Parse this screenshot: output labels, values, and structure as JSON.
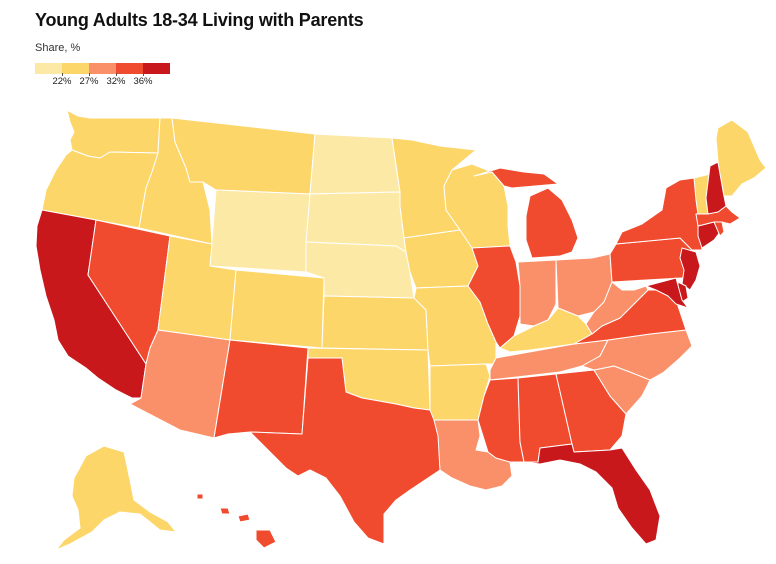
{
  "title": "Young Adults 18-34 Living with Parents",
  "subtitle": "Share, %",
  "legend": {
    "colors": [
      "#fde9a6",
      "#fdd66a",
      "#fa9069",
      "#f04b2e",
      "#c8181c"
    ],
    "ticks": [
      "22%",
      "27%",
      "32%",
      "36%"
    ]
  },
  "states": [
    {
      "code": "WA",
      "tier": 1
    },
    {
      "code": "OR",
      "tier": 1
    },
    {
      "code": "CA",
      "tier": 4
    },
    {
      "code": "ID",
      "tier": 1
    },
    {
      "code": "NV",
      "tier": 3
    },
    {
      "code": "MT",
      "tier": 1
    },
    {
      "code": "WY",
      "tier": 0
    },
    {
      "code": "UT",
      "tier": 1
    },
    {
      "code": "AZ",
      "tier": 2
    },
    {
      "code": "CO",
      "tier": 1
    },
    {
      "code": "NM",
      "tier": 3
    },
    {
      "code": "ND",
      "tier": 0
    },
    {
      "code": "SD",
      "tier": 0
    },
    {
      "code": "NE",
      "tier": 0
    },
    {
      "code": "KS",
      "tier": 1
    },
    {
      "code": "OK",
      "tier": 1
    },
    {
      "code": "TX",
      "tier": 3
    },
    {
      "code": "MN",
      "tier": 1
    },
    {
      "code": "IA",
      "tier": 1
    },
    {
      "code": "MO",
      "tier": 1
    },
    {
      "code": "AR",
      "tier": 1
    },
    {
      "code": "LA",
      "tier": 2
    },
    {
      "code": "WI",
      "tier": 1
    },
    {
      "code": "IL",
      "tier": 3
    },
    {
      "code": "MI",
      "tier": 3
    },
    {
      "code": "IN",
      "tier": 2
    },
    {
      "code": "OH",
      "tier": 2
    },
    {
      "code": "KY",
      "tier": 1
    },
    {
      "code": "TN",
      "tier": 2
    },
    {
      "code": "MS",
      "tier": 3
    },
    {
      "code": "AL",
      "tier": 3
    },
    {
      "code": "GA",
      "tier": 3
    },
    {
      "code": "FL",
      "tier": 4
    },
    {
      "code": "SC",
      "tier": 2
    },
    {
      "code": "NC",
      "tier": 2
    },
    {
      "code": "VA",
      "tier": 3
    },
    {
      "code": "WV",
      "tier": 2
    },
    {
      "code": "PA",
      "tier": 3
    },
    {
      "code": "NY",
      "tier": 3
    },
    {
      "code": "NJ",
      "tier": 4
    },
    {
      "code": "DE",
      "tier": 4
    },
    {
      "code": "MD",
      "tier": 4
    },
    {
      "code": "CT",
      "tier": 4
    },
    {
      "code": "RI",
      "tier": 3
    },
    {
      "code": "MA",
      "tier": 3
    },
    {
      "code": "VT",
      "tier": 1
    },
    {
      "code": "NH",
      "tier": 4
    },
    {
      "code": "ME",
      "tier": 1
    },
    {
      "code": "AK",
      "tier": 1
    },
    {
      "code": "HI",
      "tier": 3
    }
  ]
}
